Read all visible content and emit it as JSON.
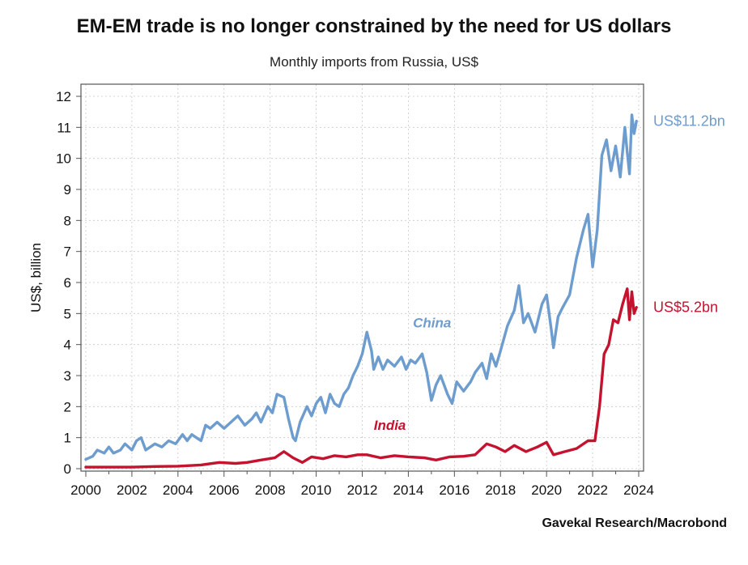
{
  "chart_data": {
    "type": "line",
    "title": "EM-EM trade is no longer constrained by the need for US dollars",
    "subtitle": "Monthly imports from Russia, US$",
    "ylabel": "US$, billion",
    "xlabel": "",
    "source": "Gavekal Research/Macrobond",
    "xlim": [
      2000,
      2024
    ],
    "ylim": [
      0,
      12
    ],
    "grid": true,
    "x_ticks": [
      "2000",
      "2002",
      "2004",
      "2006",
      "2008",
      "2010",
      "2012",
      "2014",
      "2016",
      "2018",
      "2020",
      "2022",
      "2024"
    ],
    "y_ticks": [
      "0",
      "1",
      "2",
      "3",
      "4",
      "5",
      "6",
      "7",
      "8",
      "9",
      "10",
      "11",
      "12"
    ],
    "series": [
      {
        "name": "China",
        "label": "China",
        "end_label": "US$11.2bn",
        "color": "#6d9ccf",
        "points": [
          [
            2000.0,
            0.3
          ],
          [
            2000.3,
            0.4
          ],
          [
            2000.5,
            0.6
          ],
          [
            2000.8,
            0.5
          ],
          [
            2001.0,
            0.7
          ],
          [
            2001.2,
            0.5
          ],
          [
            2001.5,
            0.6
          ],
          [
            2001.7,
            0.8
          ],
          [
            2002.0,
            0.6
          ],
          [
            2002.2,
            0.9
          ],
          [
            2002.4,
            1.0
          ],
          [
            2002.6,
            0.6
          ],
          [
            2003.0,
            0.8
          ],
          [
            2003.3,
            0.7
          ],
          [
            2003.6,
            0.9
          ],
          [
            2003.9,
            0.8
          ],
          [
            2004.2,
            1.1
          ],
          [
            2004.4,
            0.9
          ],
          [
            2004.6,
            1.1
          ],
          [
            2004.8,
            1.0
          ],
          [
            2005.0,
            0.9
          ],
          [
            2005.2,
            1.4
          ],
          [
            2005.4,
            1.3
          ],
          [
            2005.7,
            1.5
          ],
          [
            2006.0,
            1.3
          ],
          [
            2006.3,
            1.5
          ],
          [
            2006.6,
            1.7
          ],
          [
            2006.9,
            1.4
          ],
          [
            2007.2,
            1.6
          ],
          [
            2007.4,
            1.8
          ],
          [
            2007.6,
            1.5
          ],
          [
            2007.9,
            2.0
          ],
          [
            2008.1,
            1.8
          ],
          [
            2008.3,
            2.4
          ],
          [
            2008.6,
            2.3
          ],
          [
            2008.8,
            1.6
          ],
          [
            2009.0,
            1.0
          ],
          [
            2009.1,
            0.9
          ],
          [
            2009.3,
            1.5
          ],
          [
            2009.6,
            2.0
          ],
          [
            2009.8,
            1.7
          ],
          [
            2010.0,
            2.1
          ],
          [
            2010.2,
            2.3
          ],
          [
            2010.4,
            1.8
          ],
          [
            2010.6,
            2.4
          ],
          [
            2010.8,
            2.1
          ],
          [
            2011.0,
            2.0
          ],
          [
            2011.2,
            2.4
          ],
          [
            2011.4,
            2.6
          ],
          [
            2011.6,
            3.0
          ],
          [
            2011.8,
            3.3
          ],
          [
            2012.0,
            3.7
          ],
          [
            2012.2,
            4.4
          ],
          [
            2012.4,
            3.8
          ],
          [
            2012.5,
            3.2
          ],
          [
            2012.7,
            3.6
          ],
          [
            2012.9,
            3.2
          ],
          [
            2013.1,
            3.5
          ],
          [
            2013.4,
            3.3
          ],
          [
            2013.7,
            3.6
          ],
          [
            2013.9,
            3.2
          ],
          [
            2014.1,
            3.5
          ],
          [
            2014.3,
            3.4
          ],
          [
            2014.6,
            3.7
          ],
          [
            2014.8,
            3.1
          ],
          [
            2015.0,
            2.2
          ],
          [
            2015.2,
            2.7
          ],
          [
            2015.4,
            3.0
          ],
          [
            2015.7,
            2.4
          ],
          [
            2015.9,
            2.1
          ],
          [
            2016.1,
            2.8
          ],
          [
            2016.4,
            2.5
          ],
          [
            2016.7,
            2.8
          ],
          [
            2016.9,
            3.1
          ],
          [
            2017.2,
            3.4
          ],
          [
            2017.4,
            2.9
          ],
          [
            2017.6,
            3.7
          ],
          [
            2017.8,
            3.3
          ],
          [
            2018.0,
            3.8
          ],
          [
            2018.3,
            4.6
          ],
          [
            2018.6,
            5.1
          ],
          [
            2018.8,
            5.9
          ],
          [
            2019.0,
            4.7
          ],
          [
            2019.2,
            5.0
          ],
          [
            2019.5,
            4.4
          ],
          [
            2019.8,
            5.3
          ],
          [
            2020.0,
            5.6
          ],
          [
            2020.2,
            4.5
          ],
          [
            2020.3,
            3.9
          ],
          [
            2020.5,
            4.9
          ],
          [
            2020.7,
            5.2
          ],
          [
            2021.0,
            5.6
          ],
          [
            2021.3,
            6.8
          ],
          [
            2021.6,
            7.7
          ],
          [
            2021.8,
            8.2
          ],
          [
            2022.0,
            6.5
          ],
          [
            2022.2,
            7.7
          ],
          [
            2022.4,
            10.1
          ],
          [
            2022.6,
            10.6
          ],
          [
            2022.8,
            9.6
          ],
          [
            2023.0,
            10.4
          ],
          [
            2023.2,
            9.4
          ],
          [
            2023.4,
            11.0
          ],
          [
            2023.5,
            10.2
          ],
          [
            2023.6,
            9.5
          ],
          [
            2023.7,
            11.4
          ],
          [
            2023.8,
            10.8
          ],
          [
            2023.9,
            11.2
          ]
        ]
      },
      {
        "name": "India",
        "label": "India",
        "end_label": "US$5.2bn",
        "color": "#c4122f",
        "points": [
          [
            2000.0,
            0.05
          ],
          [
            2001.0,
            0.05
          ],
          [
            2002.0,
            0.05
          ],
          [
            2003.0,
            0.07
          ],
          [
            2004.0,
            0.08
          ],
          [
            2005.0,
            0.12
          ],
          [
            2005.8,
            0.2
          ],
          [
            2006.5,
            0.17
          ],
          [
            2007.0,
            0.2
          ],
          [
            2007.6,
            0.28
          ],
          [
            2008.2,
            0.35
          ],
          [
            2008.6,
            0.55
          ],
          [
            2009.0,
            0.35
          ],
          [
            2009.4,
            0.2
          ],
          [
            2009.8,
            0.38
          ],
          [
            2010.3,
            0.32
          ],
          [
            2010.8,
            0.42
          ],
          [
            2011.3,
            0.38
          ],
          [
            2011.8,
            0.45
          ],
          [
            2012.2,
            0.45
          ],
          [
            2012.8,
            0.35
          ],
          [
            2013.4,
            0.42
          ],
          [
            2014.0,
            0.38
          ],
          [
            2014.7,
            0.35
          ],
          [
            2015.2,
            0.28
          ],
          [
            2015.8,
            0.38
          ],
          [
            2016.4,
            0.4
          ],
          [
            2016.9,
            0.45
          ],
          [
            2017.4,
            0.8
          ],
          [
            2017.8,
            0.7
          ],
          [
            2018.2,
            0.55
          ],
          [
            2018.6,
            0.75
          ],
          [
            2019.1,
            0.55
          ],
          [
            2019.6,
            0.7
          ],
          [
            2020.0,
            0.85
          ],
          [
            2020.3,
            0.45
          ],
          [
            2020.8,
            0.55
          ],
          [
            2021.3,
            0.65
          ],
          [
            2021.8,
            0.9
          ],
          [
            2022.1,
            0.9
          ],
          [
            2022.3,
            2.0
          ],
          [
            2022.5,
            3.7
          ],
          [
            2022.7,
            4.0
          ],
          [
            2022.9,
            4.8
          ],
          [
            2023.1,
            4.7
          ],
          [
            2023.3,
            5.3
          ],
          [
            2023.5,
            5.8
          ],
          [
            2023.6,
            4.8
          ],
          [
            2023.7,
            5.7
          ],
          [
            2023.8,
            5.0
          ],
          [
            2023.9,
            5.2
          ]
        ]
      }
    ]
  }
}
